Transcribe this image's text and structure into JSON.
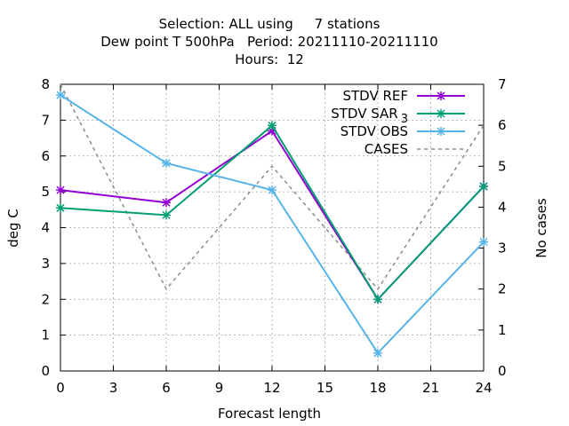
{
  "chart_data": {
    "type": "line",
    "title_lines": [
      "Selection: ALL using     7 stations",
      "Dew point T 500hPa   Period: 20211110-20211110",
      "Hours:  12"
    ],
    "xlabel": "Forecast length",
    "ylabel": "deg C",
    "y2label": "No cases",
    "x": [
      0,
      6,
      12,
      18,
      24
    ],
    "xlim": [
      0,
      24
    ],
    "xticks": [
      0,
      3,
      6,
      9,
      12,
      15,
      18,
      21,
      24
    ],
    "ylim": [
      0,
      8
    ],
    "yticks": [
      0,
      1,
      2,
      3,
      4,
      5,
      6,
      7,
      8
    ],
    "y2lim": [
      0,
      7
    ],
    "y2ticks": [
      0,
      1,
      2,
      3,
      4,
      5,
      6,
      7
    ],
    "grid": true,
    "legend_position": "top-right",
    "series": [
      {
        "name": "STDV REF",
        "name_sub": "",
        "axis": "y1",
        "color": "#9400d3",
        "dashed": false,
        "marker": true,
        "values": [
          5.05,
          4.7,
          6.7,
          2.0,
          5.15
        ]
      },
      {
        "name": "STDV SAR",
        "name_sub": "3",
        "axis": "y1",
        "color": "#009e73",
        "dashed": false,
        "marker": true,
        "values": [
          4.55,
          4.35,
          6.85,
          2.0,
          5.15
        ]
      },
      {
        "name": "STDV OBS",
        "name_sub": "",
        "axis": "y1",
        "color": "#56b4e9",
        "dashed": false,
        "marker": true,
        "values": [
          7.7,
          5.8,
          5.05,
          0.5,
          3.6
        ]
      },
      {
        "name": "CASES",
        "name_sub": "",
        "axis": "y2",
        "color": "#8c8c8c",
        "dashed": true,
        "marker": false,
        "values": [
          7,
          2,
          5,
          2,
          6
        ]
      }
    ]
  }
}
